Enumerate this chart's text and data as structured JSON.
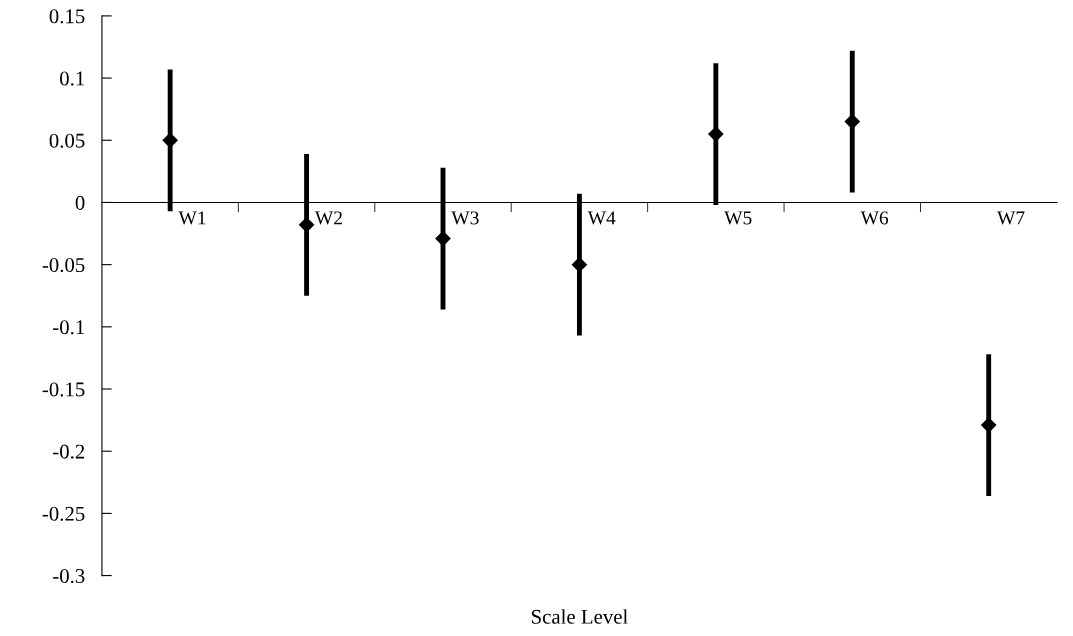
{
  "chart_data": {
    "type": "scatter",
    "xlabel": "Scale Level",
    "categories": [
      "W1",
      "W2",
      "W3",
      "W4",
      "W5",
      "W6",
      "W7"
    ],
    "series": [
      {
        "color": "#000000",
        "values": [
          0.05,
          -0.018,
          -0.029,
          -0.05,
          0.055,
          0.065,
          -0.179
        ],
        "errors": [
          0.057,
          0.057,
          0.057,
          0.057,
          0.057,
          0.057,
          0.057
        ]
      }
    ],
    "ylim": [
      -0.3,
      0.15
    ],
    "yticks": [
      -0.3,
      -0.25,
      -0.2,
      -0.15,
      -0.1,
      -0.05,
      0,
      0.05,
      0.1,
      0.15
    ],
    "marker": "diamond",
    "grid": false,
    "legend": false
  }
}
